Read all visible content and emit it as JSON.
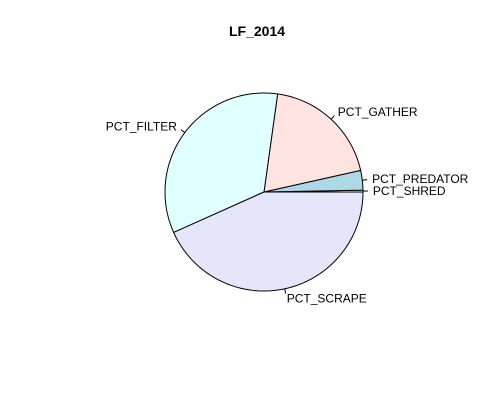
{
  "chart_data": {
    "type": "pie",
    "title": "LF_2014",
    "start_angle_deg": 0,
    "direction": "counterclockwise",
    "slices": [
      {
        "label": "PCT_SHRED",
        "value": 0.3,
        "color": "#ffffff"
      },
      {
        "label": "PCT_PREDATOR",
        "value": 3.2,
        "color": "#add8e6"
      },
      {
        "label": "PCT_GATHER",
        "value": 19.3,
        "color": "#ffe4e1"
      },
      {
        "label": "PCT_FILTER",
        "value": 33.9,
        "color": "#e0ffff"
      },
      {
        "label": "PCT_SCRAPE",
        "value": 43.3,
        "color": "#e6e6fa"
      }
    ]
  }
}
